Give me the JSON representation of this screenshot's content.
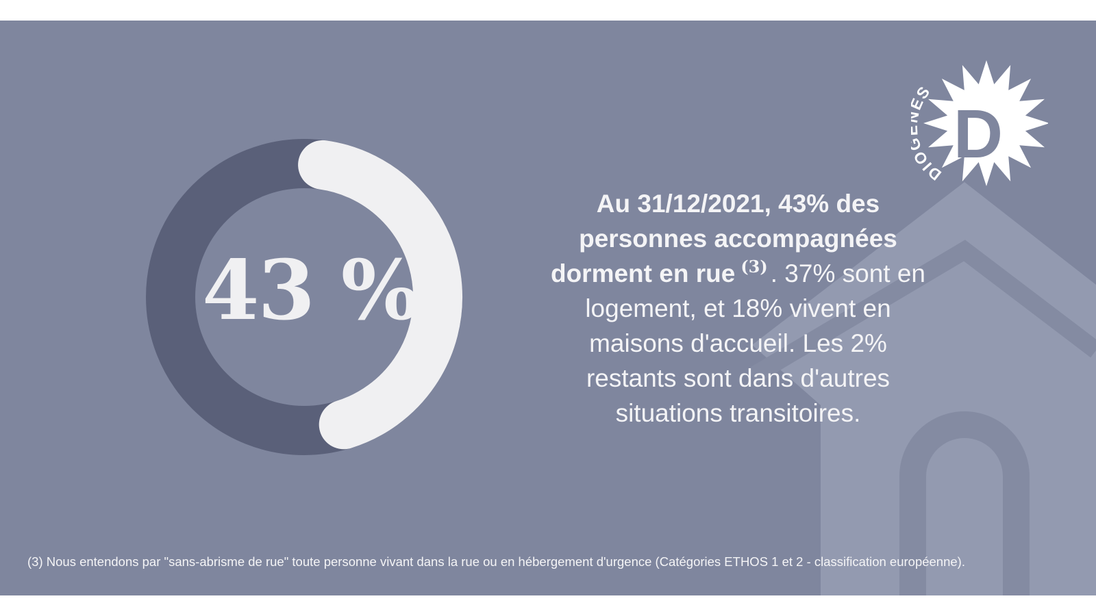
{
  "colors": {
    "background": "#7f869e",
    "donut_track": "#5a6079",
    "donut_value": "#f0f0f2",
    "house": "#939ab0",
    "text": "#f4f4f6"
  },
  "chart_data": {
    "type": "pie",
    "donut": true,
    "value_percent": 43,
    "center_label": "43 %"
  },
  "statement": {
    "bold": "Au 31/12/2021, 43% des personnes accompagnées dorment en rue",
    "ref": "(3)",
    "rest": ". 37% sont en logement, et 18% vivent en maisons d'accueil. Les 2% restants sont dans d'autres situations transitoires."
  },
  "footnote": "(3) Nous entendons par \"sans-abrisme de rue\" toute personne vivant dans la rue ou en hébergement d'urgence (Catégories ETHOS 1 et 2 - classification européenne).",
  "logo": {
    "wordmark": "DIOGENES",
    "letter": "D"
  },
  "icons": [
    "house-icon",
    "diogenes-logo"
  ]
}
